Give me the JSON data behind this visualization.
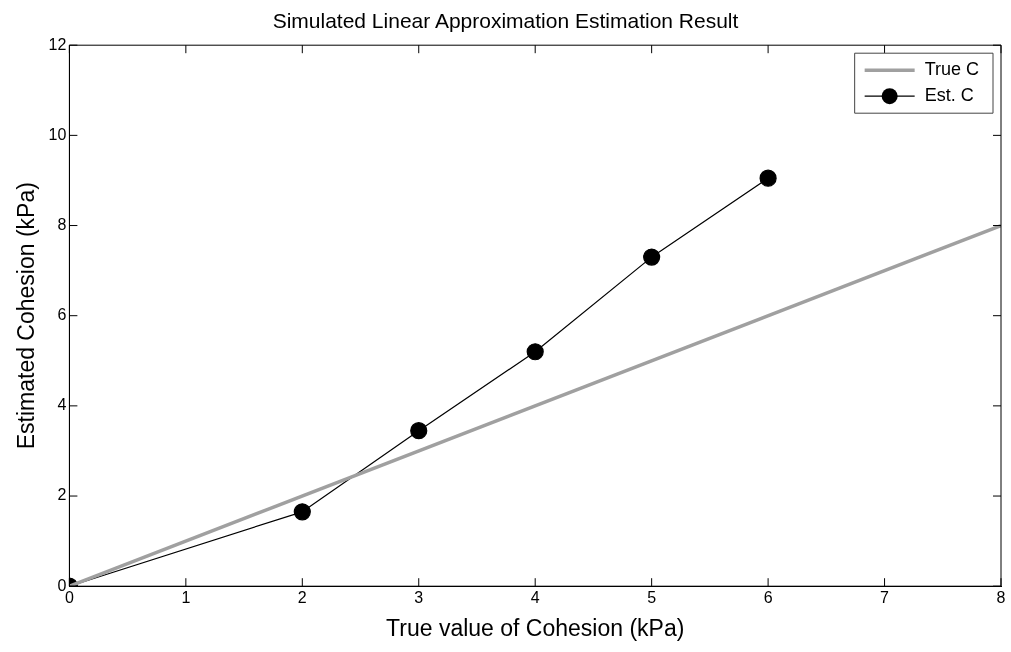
{
  "chart_data": {
    "type": "line",
    "title": "Simulated Linear Approximation Estimation Result",
    "xlabel": "True value of Cohesion (kPa)",
    "ylabel": "Estimated Cohesion (kPa)",
    "xlim": [
      0,
      8
    ],
    "xticks": [
      0,
      1,
      2,
      3,
      4,
      5,
      6,
      7,
      8
    ],
    "ylim": [
      0,
      12
    ],
    "yticks": [
      0,
      2,
      4,
      6,
      8,
      10,
      12
    ],
    "grid": false,
    "legend": "top right",
    "line_style": "solid",
    "series": [
      {
        "name": "True C",
        "color": "#a0a0a0",
        "x": [
          0,
          8
        ],
        "values": [
          0,
          8
        ],
        "marker": "none"
      },
      {
        "name": "Est. C",
        "color": "#000000",
        "x": [
          0,
          2,
          3,
          4,
          5,
          6
        ],
        "values": [
          0,
          1.65,
          3.45,
          5.2,
          7.3,
          9.05
        ],
        "marker": "circle"
      }
    ]
  }
}
